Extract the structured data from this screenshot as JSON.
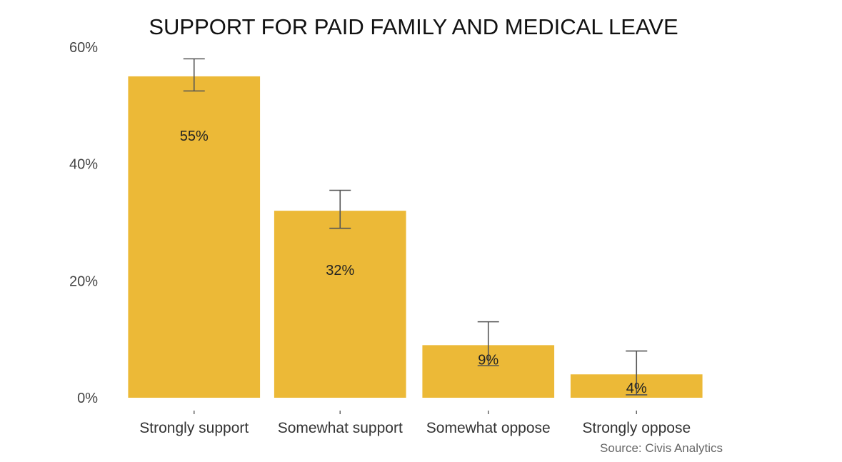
{
  "chart_data": {
    "type": "bar",
    "title": "SUPPORT FOR PAID FAMILY AND MEDICAL LEAVE",
    "categories": [
      "Strongly support",
      "Somewhat support",
      "Somewhat oppose",
      "Strongly oppose"
    ],
    "values": [
      55,
      32,
      9,
      4
    ],
    "data_labels": [
      "55%",
      "32%",
      "9%",
      "4%"
    ],
    "error_low": [
      52.5,
      29,
      5.5,
      0.5
    ],
    "error_high": [
      58,
      35.5,
      13,
      8
    ],
    "ylim": [
      0,
      60
    ],
    "yticks": [
      0,
      20,
      40,
      60
    ],
    "ytick_labels": [
      "0%",
      "20%",
      "40%",
      "60%"
    ],
    "xlabel": "",
    "ylabel": "",
    "grid": false,
    "legend": "none",
    "bar_color": "#ECB937",
    "source": "Source: Civis Analytics"
  }
}
